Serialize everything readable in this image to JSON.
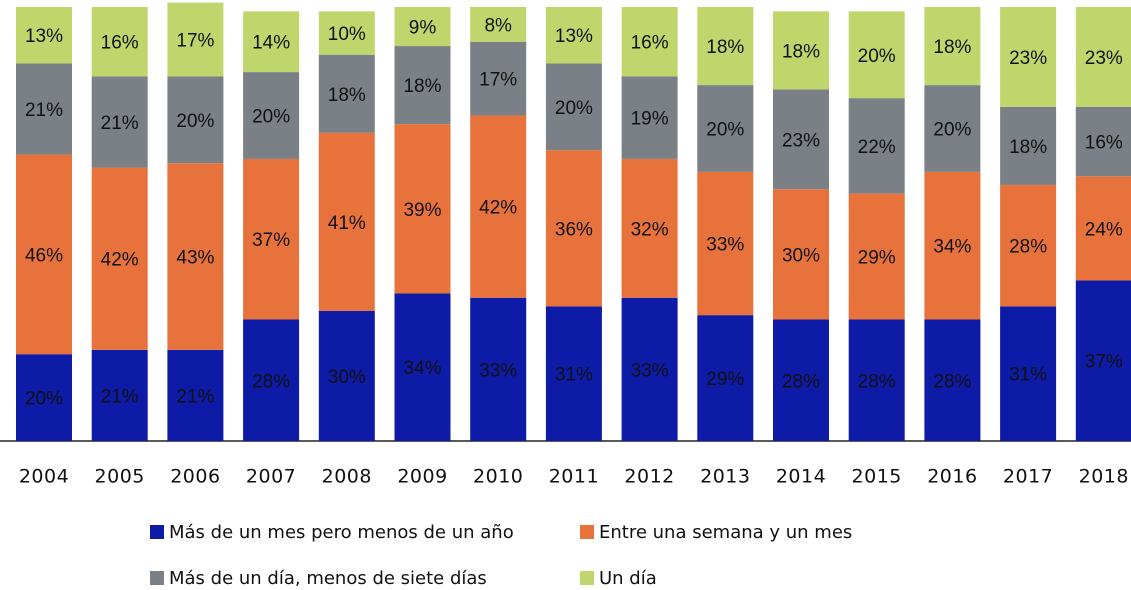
{
  "chart_data": {
    "type": "stacked-bar",
    "categories": [
      "2004",
      "2005",
      "2006",
      "2007",
      "2008",
      "2009",
      "2010",
      "2011",
      "2012",
      "2013",
      "2014",
      "2015",
      "2016",
      "2017",
      "2018"
    ],
    "ylim": [
      0,
      100
    ],
    "series": [
      {
        "name": "Más de un mes pero menos de un año",
        "color": "#0d1ba6",
        "values": [
          20,
          21,
          21,
          28,
          30,
          34,
          33,
          31,
          33,
          29,
          28,
          28,
          28,
          31,
          37
        ],
        "value_labels": [
          "20%",
          "21%",
          "21%",
          "28%",
          "30%",
          "34%",
          "33%",
          "31%",
          "33%",
          "29%",
          "28%",
          "28%",
          "28%",
          "31%",
          "37%"
        ]
      },
      {
        "name": "Entre una semana y un mes",
        "color": "#e8723c",
        "values": [
          46,
          42,
          43,
          37,
          41,
          39,
          42,
          36,
          32,
          33,
          30,
          29,
          34,
          28,
          24
        ],
        "value_labels": [
          "46%",
          "42%",
          "43%",
          "37%",
          "41%",
          "39%",
          "42%",
          "36%",
          "32%",
          "33%",
          "30%",
          "29%",
          "34%",
          "28%",
          "24%"
        ]
      },
      {
        "name": "Más de un día, menos de siete días",
        "color": "#7b7f86",
        "values": [
          21,
          21,
          20,
          20,
          18,
          18,
          17,
          20,
          19,
          20,
          23,
          22,
          20,
          18,
          16
        ],
        "value_labels": [
          "21%",
          "21%",
          "20%",
          "20%",
          "18%",
          "18%",
          "17%",
          "20%",
          "19%",
          "20%",
          "23%",
          "22%",
          "20%",
          "18%",
          "16%"
        ]
      },
      {
        "name": "Un día",
        "color": "#c0d56b",
        "values": [
          13,
          16,
          17,
          14,
          10,
          9,
          8,
          13,
          16,
          18,
          18,
          20,
          18,
          23,
          23
        ],
        "value_labels": [
          "13%",
          "16%",
          "17%",
          "14%",
          "10%",
          "9%",
          "8%",
          "13%",
          "16%",
          "18%",
          "18%",
          "20%",
          "18%",
          "23%",
          "23%"
        ]
      }
    ]
  }
}
